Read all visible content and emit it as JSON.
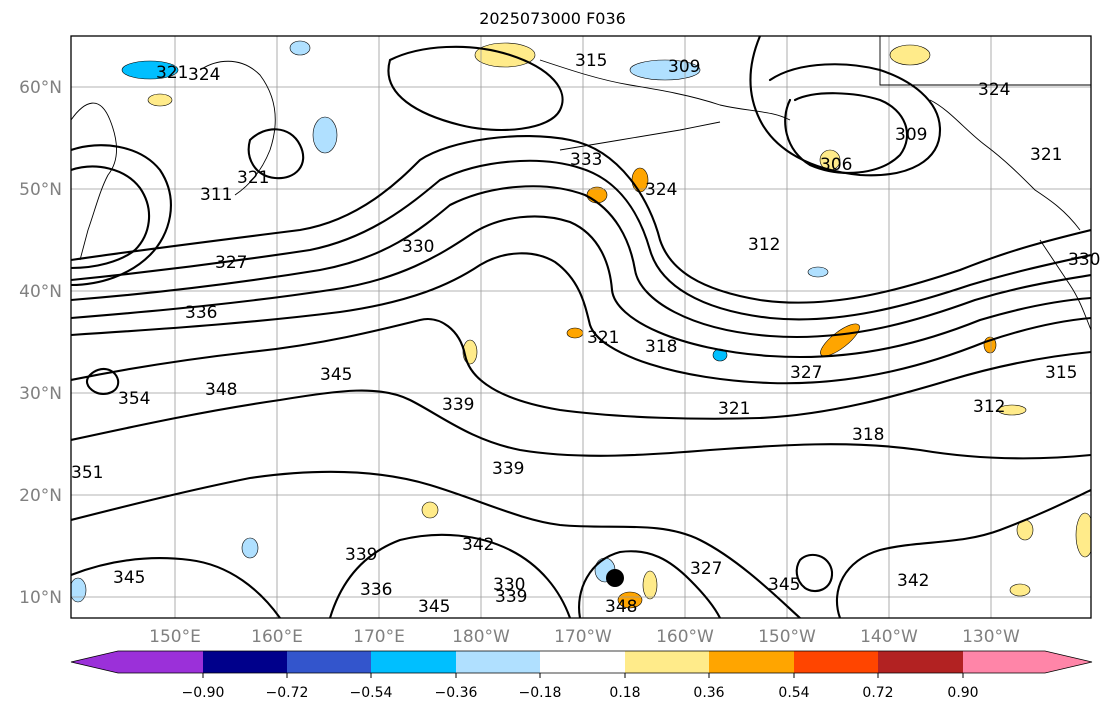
{
  "title": "2025073000 F036",
  "map": {
    "lat_labels": [
      "60°N",
      "50°N",
      "40°N",
      "30°N",
      "20°N",
      "10°N"
    ],
    "lon_labels": [
      "150°E",
      "160°E",
      "170°E",
      "180°W",
      "170°W",
      "160°W",
      "150°W",
      "140°W",
      "130°W"
    ],
    "contour_labels": [
      "321",
      "324",
      "315",
      "309",
      "324",
      "306",
      "309",
      "321",
      "311",
      "321",
      "333",
      "324",
      "312",
      "330",
      "327",
      "336",
      "330",
      "321",
      "318",
      "327",
      "315",
      "345",
      "348",
      "354",
      "339",
      "321",
      "312",
      "318",
      "339",
      "351",
      "339",
      "342",
      "336",
      "330",
      "339",
      "345",
      "327",
      "345",
      "342",
      "345",
      "348"
    ],
    "storm_marker": "tropical-cyclone-dot"
  },
  "colorbar": {
    "ticks": [
      "−0.90",
      "−0.72",
      "−0.54",
      "−0.36",
      "−0.18",
      "0.18",
      "0.36",
      "0.54",
      "0.72",
      "0.90"
    ],
    "colors": [
      "#9b30d9",
      "#00008b",
      "#3355cc",
      "#00bfff",
      "#b0e0ff",
      "#ffffff",
      "#ffeb8a",
      "#ffa500",
      "#ff4500",
      "#b22222",
      "#ff85a8",
      "#ff85a8"
    ]
  }
}
